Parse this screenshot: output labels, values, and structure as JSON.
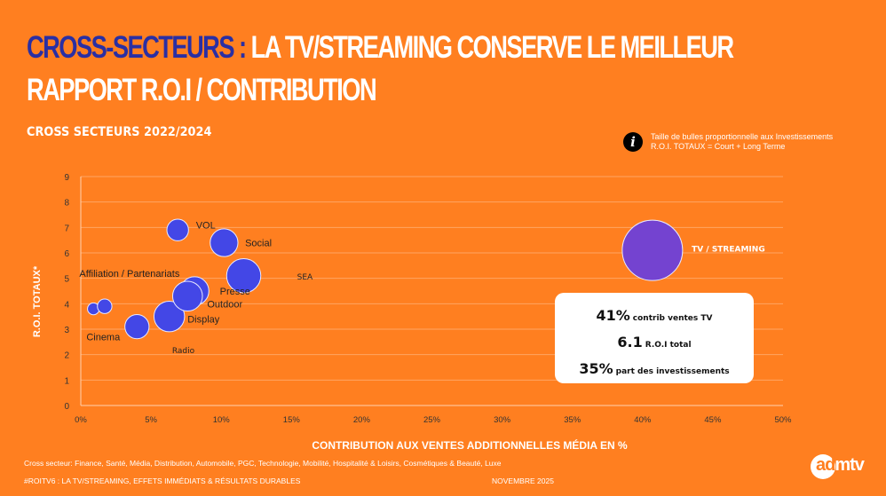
{
  "header": {
    "title_highlight": "CROSS-SECTEURS :",
    "title_rest": "LA TV/STREAMING CONSERVE LE MEILLEUR",
    "title_line2": "RAPPORT R.O.I / CONTRIBUTION",
    "subtitle": "CROSS SECTEURS 2022/2024"
  },
  "info": {
    "icon": "info-icon",
    "icon_glyph": "i",
    "line1": "Taille de bulles proportionnelle aux Investissements",
    "line2": "R.O.I. TOTAUX = Court + Long Terme"
  },
  "callout": {
    "line1_value": "41%",
    "line1_label": "contrib ventes TV",
    "line2_value": "6.1",
    "line2_label": "R.O.I total",
    "line3_value": "35%",
    "line3_label": "part des investissements"
  },
  "footer": {
    "sectors": "Cross secteur: Finance, Santé, Média, Distribution, Automobile, PGC, Technologie, Mobilité, Hospitalité & Loisirs, Cosmétiques & Beauté, Luxe",
    "campaign": "#ROITV6 : LA TV/STREAMING, EFFETS IMMÉDIATS & RÉSULTATS DURABLES",
    "date": "NOVEMBRE 2025",
    "logo_ad": "ad",
    "logo_mtv": "mtv"
  },
  "colors": {
    "background": "#FF7F20",
    "bubble": "#4347E6",
    "tv_bubble": "#7443D0",
    "title_highlight": "#2A2FA3"
  },
  "chart_data": {
    "type": "scatter",
    "subtype": "bubble",
    "title": "CROSS SECTEURS 2022/2024",
    "xlabel": "CONTRIBUTION AUX VENTES ADDITIONNELLES MÉDIA EN %",
    "ylabel": "R.O.I. TOTAUX*",
    "xlim": [
      0,
      50
    ],
    "ylim": [
      0,
      9
    ],
    "xticks": [
      "0%",
      "5%",
      "10%",
      "15%",
      "20%",
      "25%",
      "30%",
      "35%",
      "40%",
      "45%",
      "50%"
    ],
    "yticks": [
      "0",
      "1",
      "2",
      "3",
      "4",
      "5",
      "6",
      "7",
      "8",
      "9"
    ],
    "grid": true,
    "points": [
      {
        "name": "small-a",
        "x": 0.9,
        "y": 3.8,
        "size": 0.6
      },
      {
        "name": "small-b",
        "x": 1.7,
        "y": 3.9,
        "size": 0.9
      },
      {
        "name": "Cinema",
        "x": 4.0,
        "y": 3.1,
        "size": 2.5
      },
      {
        "name": "Display",
        "x": 6.3,
        "y": 3.5,
        "size": 4.0
      },
      {
        "name": "Presse",
        "x": 8.1,
        "y": 4.5,
        "size": 3.5
      },
      {
        "name": "Outdoor",
        "x": 7.6,
        "y": 4.3,
        "size": 3.8
      },
      {
        "name": "VOL",
        "x": 6.9,
        "y": 6.9,
        "size": 2.0
      },
      {
        "name": "Social",
        "x": 10.2,
        "y": 6.4,
        "size": 3.3
      },
      {
        "name": "SEA",
        "x": 11.6,
        "y": 5.1,
        "size": 5.0
      },
      {
        "name": "TV / STREAMING",
        "x": 40.7,
        "y": 6.1,
        "size": 15.6
      }
    ],
    "labels": [
      {
        "text": "VOL",
        "x": 8.2,
        "y": 7.1,
        "style": "arial"
      },
      {
        "text": "Social",
        "x": 11.7,
        "y": 6.4,
        "style": "arial"
      },
      {
        "text": "Affiliation / Partenariats",
        "x": -0.1,
        "y": 5.2,
        "style": "arial"
      },
      {
        "text": "SEA",
        "x": 15.4,
        "y": 5.1,
        "style": "small"
      },
      {
        "text": "Presse",
        "x": 9.9,
        "y": 4.5,
        "style": "arial"
      },
      {
        "text": "Outdoor",
        "x": 9.0,
        "y": 4.0,
        "style": "arial"
      },
      {
        "text": "Display",
        "x": 7.6,
        "y": 3.4,
        "style": "arial"
      },
      {
        "text": "Cinema",
        "x": 0.4,
        "y": 2.7,
        "style": "arial"
      },
      {
        "text": "Radio",
        "x": 6.5,
        "y": 2.2,
        "style": "small"
      },
      {
        "text": "TV / STREAMING",
        "x": 43.5,
        "y": 6.2,
        "style": "tv"
      }
    ]
  }
}
